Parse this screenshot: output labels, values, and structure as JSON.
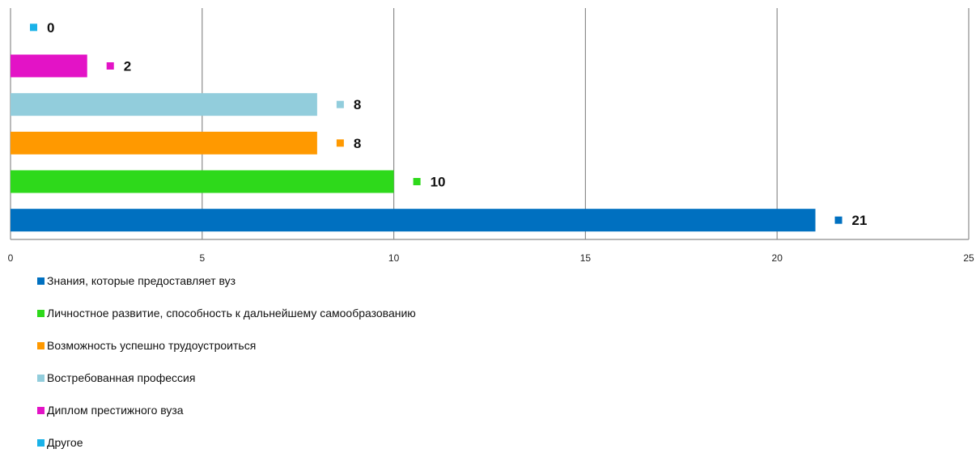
{
  "chart_data": {
    "type": "bar",
    "orientation": "horizontal",
    "categories": [
      "Знания, которые предоставляет вуз",
      "Личностное развитие, способность к дальнейшему самообразованию",
      "Возможность успешно трудоустроиться",
      "Востребованная профессия",
      "Диплом престижного вуза",
      "Другое"
    ],
    "values": [
      21,
      10,
      8,
      8,
      2,
      0
    ],
    "colors": [
      "#0070c0",
      "#2ed91b",
      "#ff9900",
      "#92cddc",
      "#e313c6",
      "#1ab2e8"
    ],
    "xlim": [
      0,
      25
    ],
    "xticks": [
      "0",
      "5",
      "10",
      "15",
      "20",
      "25"
    ],
    "grid": true,
    "legend_position": "bottom-left",
    "title": "",
    "xlabel": "",
    "ylabel": ""
  }
}
